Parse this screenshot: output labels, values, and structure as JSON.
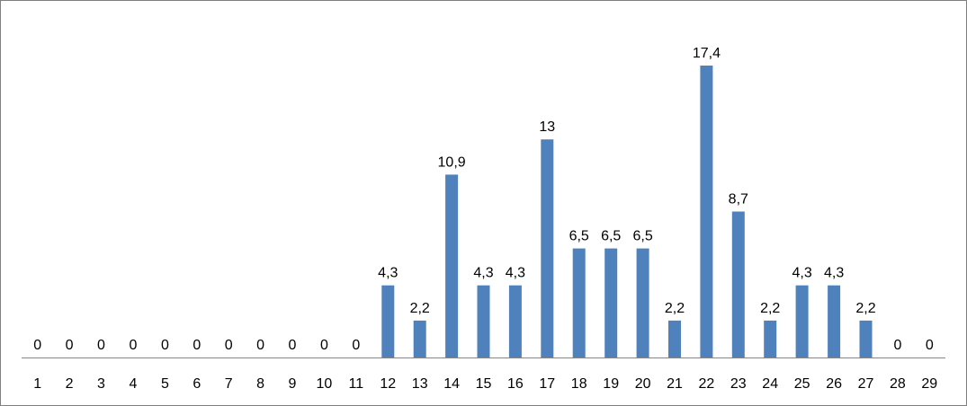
{
  "chart_data": {
    "type": "bar",
    "title": "",
    "xlabel": "",
    "ylabel": "",
    "categories": [
      "1",
      "2",
      "3",
      "4",
      "5",
      "6",
      "7",
      "8",
      "9",
      "10",
      "11",
      "12",
      "13",
      "14",
      "15",
      "16",
      "17",
      "18",
      "19",
      "20",
      "21",
      "22",
      "23",
      "24",
      "25",
      "26",
      "27",
      "28",
      "29"
    ],
    "values": [
      0,
      0,
      0,
      0,
      0,
      0,
      0,
      0,
      0,
      0,
      0,
      4.3,
      2.2,
      10.9,
      4.3,
      4.3,
      13,
      6.5,
      6.5,
      6.5,
      2.2,
      17.4,
      8.7,
      2.2,
      4.3,
      4.3,
      2.2,
      0,
      0
    ],
    "value_labels": [
      "0",
      "0",
      "0",
      "0",
      "0",
      "0",
      "0",
      "0",
      "0",
      "0",
      "0",
      "4,3",
      "2,2",
      "10,9",
      "4,3",
      "4,3",
      "13",
      "6,5",
      "6,5",
      "6,5",
      "2,2",
      "17,4",
      "8,7",
      "2,2",
      "4,3",
      "4,3",
      "2,2",
      "0",
      "0"
    ],
    "ylim": [
      0,
      18.65
    ],
    "grid": false,
    "legend": "none",
    "colors": {
      "bar": "#4f81bd",
      "axis": "#868686",
      "frame": "#7f7f7f",
      "text": "#000000"
    }
  }
}
